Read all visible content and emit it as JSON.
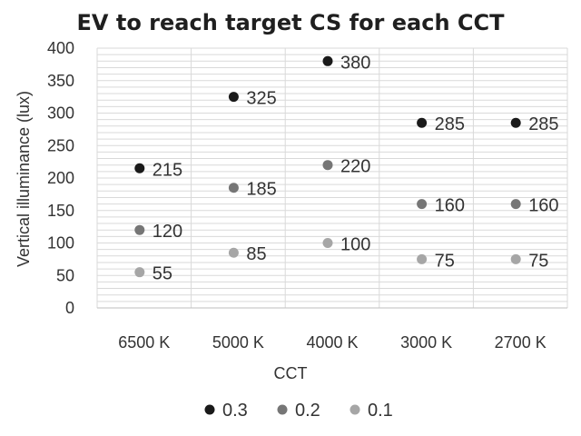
{
  "chart_data": {
    "type": "scatter",
    "title": "EV to reach target CS for each CCT",
    "xlabel": "CCT",
    "ylabel": "Vertical illuminance (lux)",
    "categories": [
      "6500 K",
      "5000 K",
      "4000 K",
      "3000 K",
      "2700 K"
    ],
    "ylim": [
      0,
      400
    ],
    "yticks": [
      0,
      50,
      100,
      150,
      200,
      250,
      300,
      350,
      400
    ],
    "grid": true,
    "legend_position": "bottom",
    "series": [
      {
        "name": "0.3",
        "color": "#1a1a1a",
        "values": [
          215,
          325,
          380,
          285,
          285
        ]
      },
      {
        "name": "0.2",
        "color": "#767676",
        "values": [
          120,
          185,
          220,
          160,
          160
        ]
      },
      {
        "name": "0.1",
        "color": "#a6a6a6",
        "values": [
          55,
          85,
          100,
          75,
          75
        ]
      }
    ]
  }
}
